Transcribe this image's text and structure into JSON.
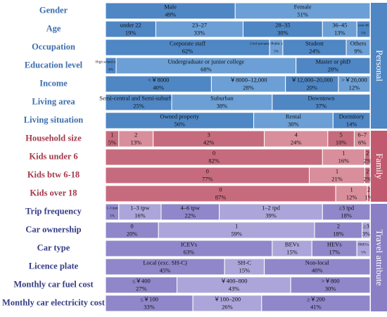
{
  "chart_data": {
    "type": "stacked-bar",
    "xlim": [
      0,
      100
    ],
    "groups": [
      {
        "name": "Personal",
        "colors": [
          "#4f86c4",
          "#6c9fd5"
        ],
        "label_color": "#3d6eae",
        "strip_color": "#4f86c4",
        "rows": [
          {
            "label": "Gender",
            "categories": [
              "Male",
              "Female"
            ],
            "values": [
              49,
              51
            ],
            "value_labels": [
              "49%",
              "51%"
            ]
          },
          {
            "label": "Age",
            "categories": [
              "under 22",
              "23–27",
              "28–35",
              "36–45",
              "over 46"
            ],
            "values": [
              19,
              33,
              30,
              13,
              5
            ],
            "value_labels": [
              "19%",
              "33%",
              "30%",
              "13%",
              "5%"
            ]
          },
          {
            "label": "Occupation",
            "categories": [
              "Corporate staff",
              "Civil servants /Public institution staff",
              "Student",
              "Others"
            ],
            "values": [
              62,
              5,
              24,
              9
            ],
            "value_labels": [
              "62%",
              "5%",
              "24%",
              "9%"
            ]
          },
          {
            "label": "Education level",
            "categories": [
              "High school or below",
              "Undergraduate or junior college",
              "Master or phD"
            ],
            "values": [
              4,
              68,
              28
            ],
            "value_labels": [
              "4%",
              "68%",
              "28%"
            ]
          },
          {
            "label": "Income",
            "categories": [
              "<￥8000",
              "￥8000–12,000",
              "￥12,000–20,000",
              ">￥20,000"
            ],
            "values": [
              40,
              28,
              20,
              12
            ],
            "value_labels": [
              "40%",
              "28%",
              "20%",
              "12%"
            ]
          },
          {
            "label": "Living area",
            "categories": [
              "Semi-central and Semi-suburban",
              "Suburban",
              "Downtown"
            ],
            "values": [
              25,
              38,
              37
            ],
            "value_labels": [
              "25%",
              "38%",
              "37%"
            ]
          },
          {
            "label": "Living situation",
            "categories": [
              "Owned property",
              "Rental",
              "Dormitory"
            ],
            "values": [
              56,
              30,
              14
            ],
            "value_labels": [
              "56%",
              "30%",
              "14%"
            ]
          }
        ]
      },
      {
        "name": "Family",
        "colors": [
          "#c66b7d",
          "#d98e9b"
        ],
        "label_color": "#a3384c",
        "strip_color": "#c25a6f",
        "rows": [
          {
            "label": "Household size",
            "categories": [
              "1",
              "2",
              "3",
              "4",
              "5",
              "6–7"
            ],
            "values": [
              5,
              13,
              42,
              24,
              10,
              6
            ],
            "value_labels": [
              "5%",
              "13%",
              "42%",
              "24%",
              "10%",
              "6%"
            ]
          },
          {
            "label": "Kids under 6",
            "categories": [
              "0",
              "1",
              "2"
            ],
            "values": [
              82,
              16,
              2
            ],
            "value_labels": [
              "82%",
              "16%",
              "2%"
            ]
          },
          {
            "label": "Kids btw 6-18",
            "categories": [
              "0",
              "1",
              "2"
            ],
            "values": [
              77,
              21,
              2
            ],
            "value_labels": [
              "77%",
              "21%",
              "2%"
            ]
          },
          {
            "label": "Kids over 18",
            "categories": [
              "0",
              "1",
              "2"
            ],
            "values": [
              87,
              12,
              1
            ],
            "value_labels": [
              "87%",
              "12%",
              "1%"
            ]
          }
        ]
      },
      {
        "name": "Travel attribute",
        "colors": [
          "#8f87c9",
          "#aca5da"
        ],
        "label_color": "#363c86",
        "strip_color": "#8a7fc4",
        "rows": [
          {
            "label": "Trip frequency",
            "categories": [
              "1–3 tpm",
              "1–3 tpw",
              "4–6 tpw",
              "1–2 tpd",
              "≥3 tpd"
            ],
            "values": [
              5,
              16,
              22,
              39,
              18
            ],
            "value_labels": [
              "5%",
              "16%",
              "22%",
              "39%",
              "18%"
            ]
          },
          {
            "label": "Car ownership",
            "categories": [
              "0",
              "1",
              "2",
              "≥3"
            ],
            "values": [
              20,
              59,
              18,
              3
            ],
            "value_labels": [
              "20%",
              "59%",
              "18%",
              "3%"
            ]
          },
          {
            "label": "Car type",
            "categories": [
              "ICEVs",
              "BEVs",
              "HEVs",
              "PHEVs"
            ],
            "values": [
              63,
              15,
              17,
              5
            ],
            "value_labels": [
              "63%",
              "15%",
              "17%",
              "5%"
            ]
          },
          {
            "label": "Licence plate",
            "categories": [
              "Local (exc. SH-C)",
              "SH-C",
              "Non-local"
            ],
            "values": [
              45,
              15,
              40
            ],
            "value_labels": [
              "45%",
              "15%",
              "40%"
            ]
          },
          {
            "label": "Monthly car fuel cost",
            "categories": [
              "≤￥400",
              "￥400–800",
              ">￥800"
            ],
            "values": [
              27,
              43,
              30
            ],
            "value_labels": [
              "27%",
              "43%",
              "30%"
            ]
          },
          {
            "label": "Monthly car electricity cost",
            "categories": [
              "≤￥100",
              "￥100–200",
              "≥￥200"
            ],
            "values": [
              33,
              26,
              41
            ],
            "value_labels": [
              "33%",
              "26%",
              "41%"
            ]
          }
        ]
      }
    ]
  }
}
